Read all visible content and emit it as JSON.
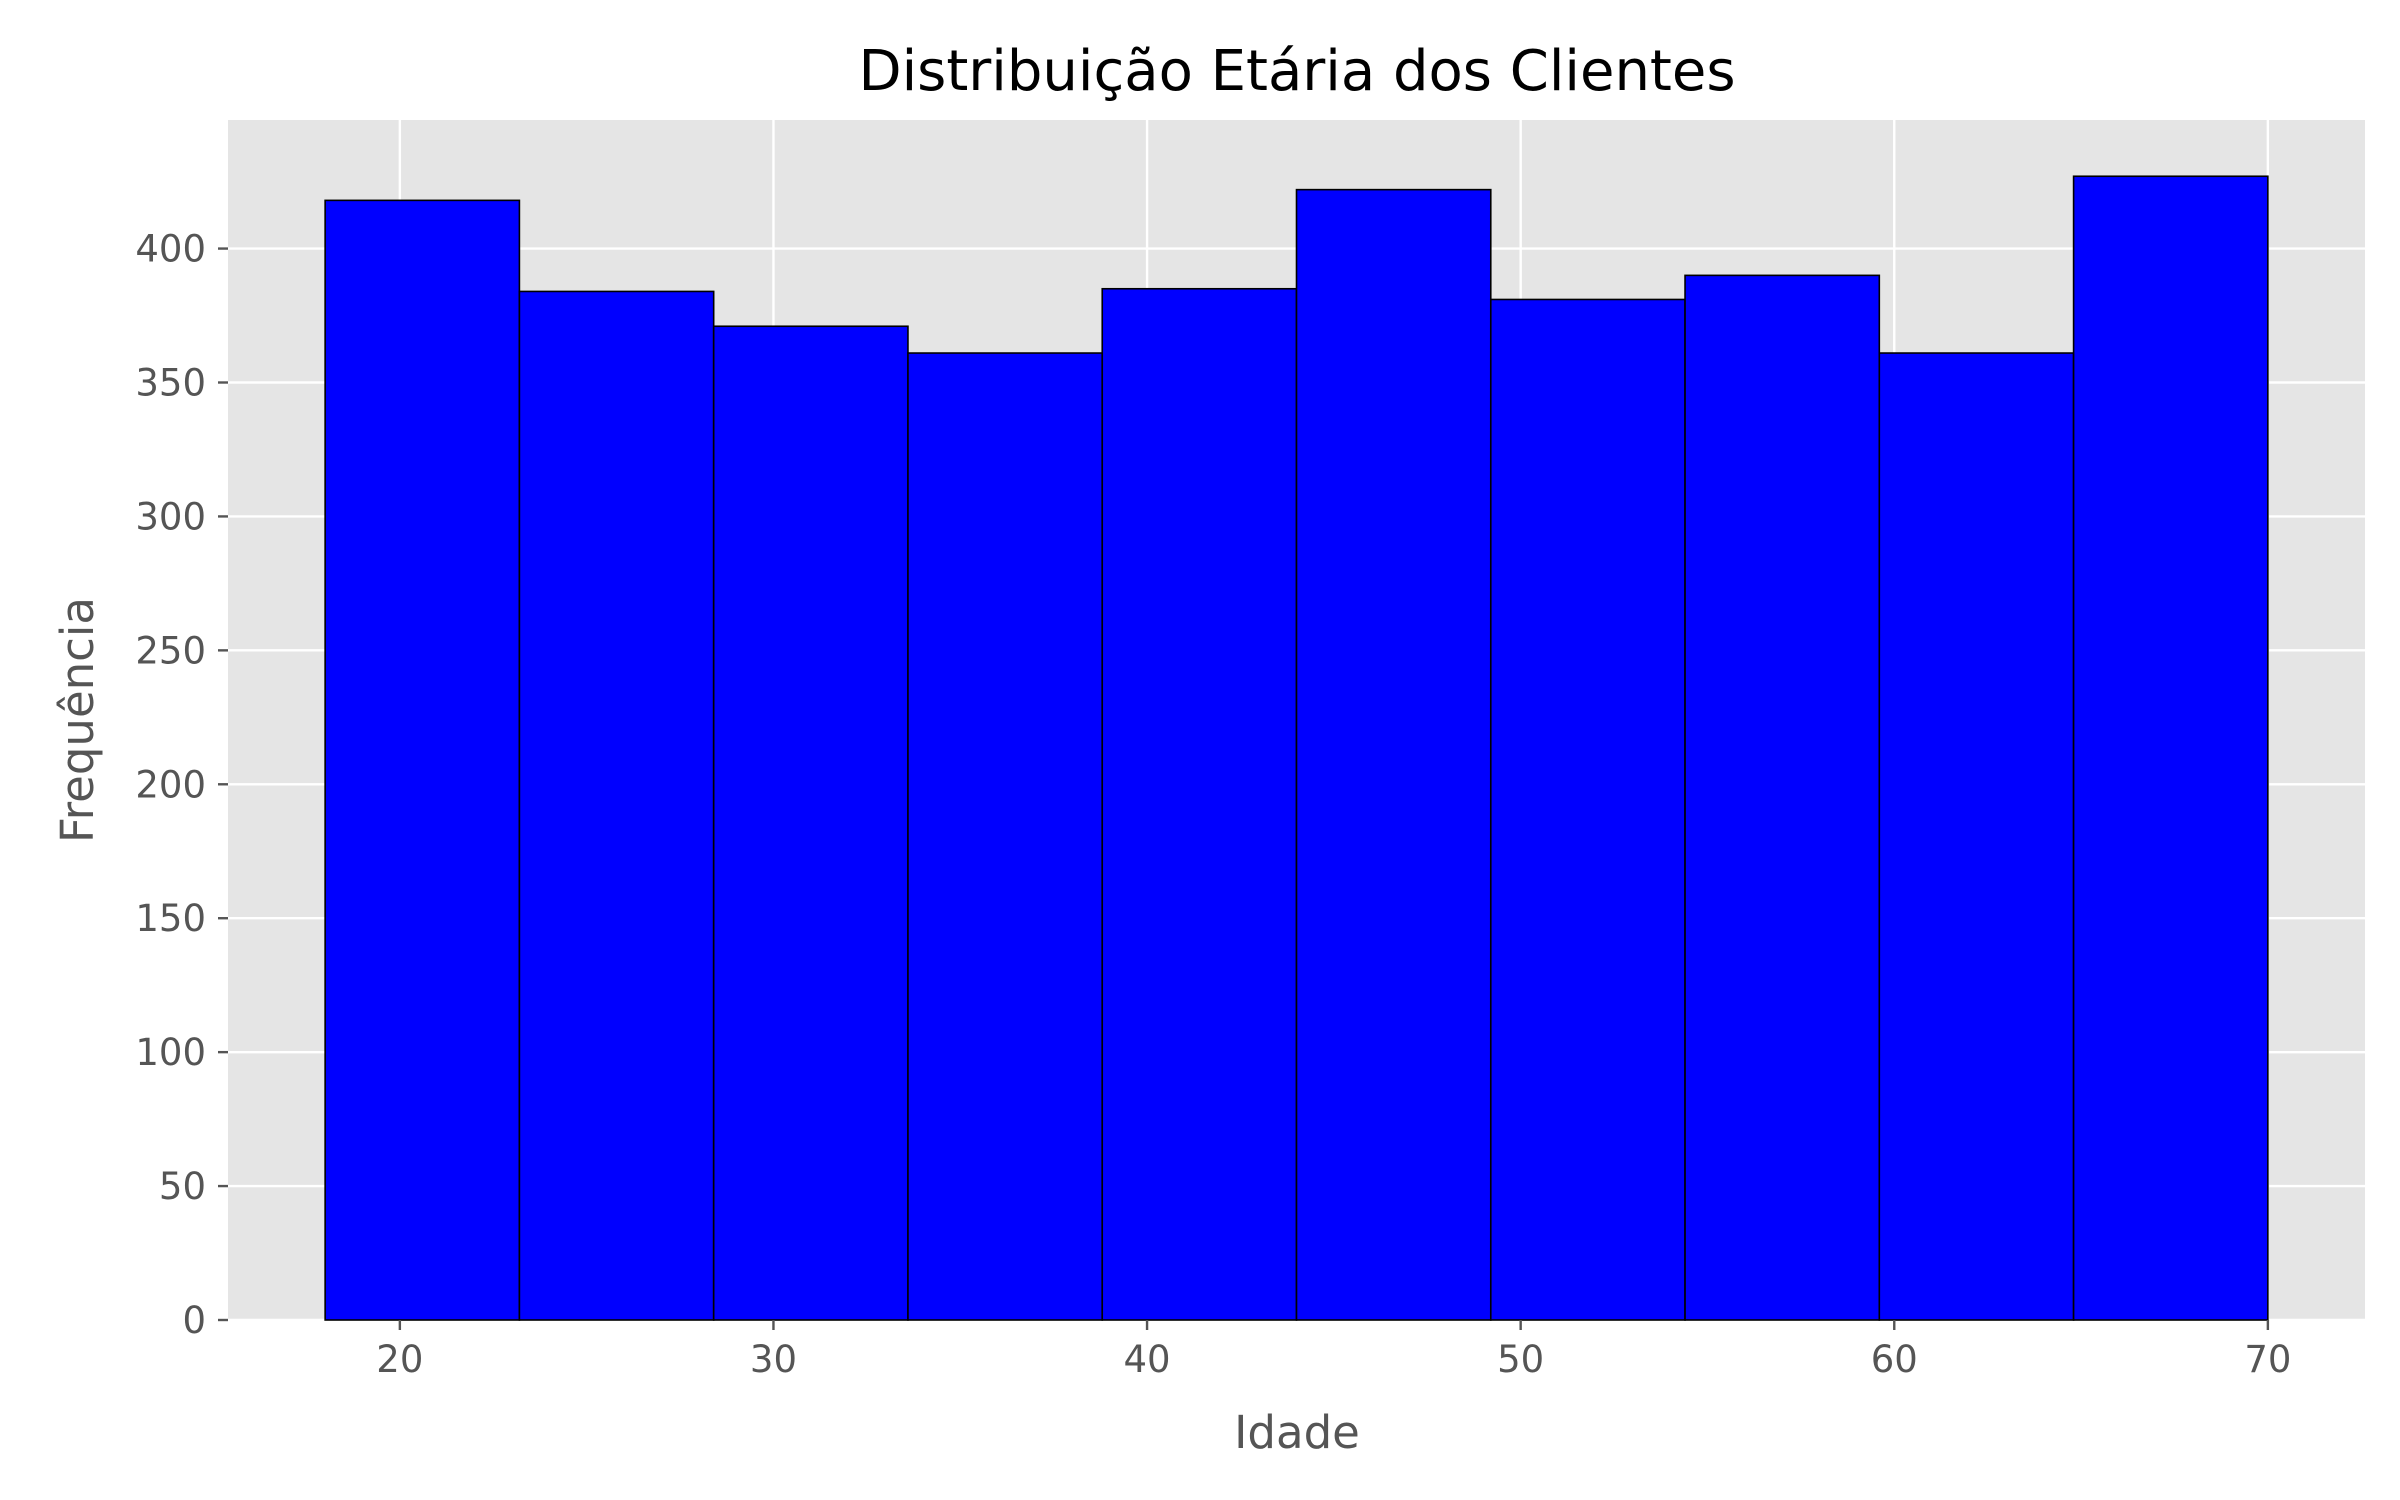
{
  "chart_data": {
    "type": "bar",
    "title": "Distribuição Etária dos Clientes",
    "xlabel": "Idade",
    "ylabel": "Frequência",
    "bin_edges": [
      18,
      23.2,
      28.4,
      33.6,
      38.8,
      44,
      49.2,
      54.4,
      59.6,
      64.8,
      70
    ],
    "values": [
      418,
      384,
      371,
      361,
      385,
      422,
      381,
      390,
      361,
      427
    ],
    "xlim": [
      15.4,
      72.6
    ],
    "ylim": [
      0,
      448
    ],
    "xticks": [
      20,
      30,
      40,
      50,
      60,
      70
    ],
    "xtick_labels": [
      "20",
      "30",
      "40",
      "50",
      "60",
      "70"
    ],
    "yticks": [
      0,
      50,
      100,
      150,
      200,
      250,
      300,
      350,
      400
    ],
    "ytick_labels": [
      "0",
      "50",
      "100",
      "150",
      "200",
      "250",
      "300",
      "350",
      "400"
    ],
    "grid": true,
    "colors": {
      "bar_fill": "#0000ff",
      "bar_edge": "#000000",
      "plot_background": "#e5e5e5",
      "grid": "#ffffff",
      "text": "#555555"
    }
  }
}
